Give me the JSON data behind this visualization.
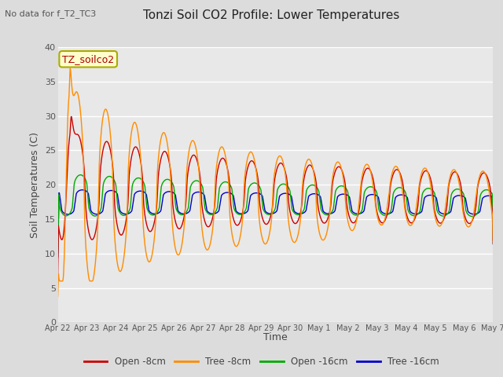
{
  "title": "Tonzi Soil CO2 Profile: Lower Temperatures",
  "subtitle": "No data for f_T2_TC3",
  "ylabel": "Soil Temperatures (C)",
  "xlabel": "Time",
  "legend_label": "TZ_soilco2",
  "ylim": [
    0,
    40
  ],
  "yticks": [
    0,
    5,
    10,
    15,
    20,
    25,
    30,
    35,
    40
  ],
  "bg_color": "#dcdcdc",
  "plot_bg": "#e8e8e8",
  "series": {
    "open8": {
      "color": "#cc0000",
      "label": "Open -8cm"
    },
    "tree8": {
      "color": "#ff8c00",
      "label": "Tree -8cm"
    },
    "open16": {
      "color": "#00aa00",
      "label": "Open -16cm"
    },
    "tree16": {
      "color": "#0000cc",
      "label": "Tree -16cm"
    }
  },
  "xtick_labels": [
    "Apr 22",
    "Apr 23",
    "Apr 24",
    "Apr 25",
    "Apr 26",
    "Apr 27",
    "Apr 28",
    "Apr 29",
    "Apr 30",
    "May 1",
    "May 2",
    "May 3",
    "May 4",
    "May 5",
    "May 6",
    "May 7"
  ],
  "n_points": 1440
}
